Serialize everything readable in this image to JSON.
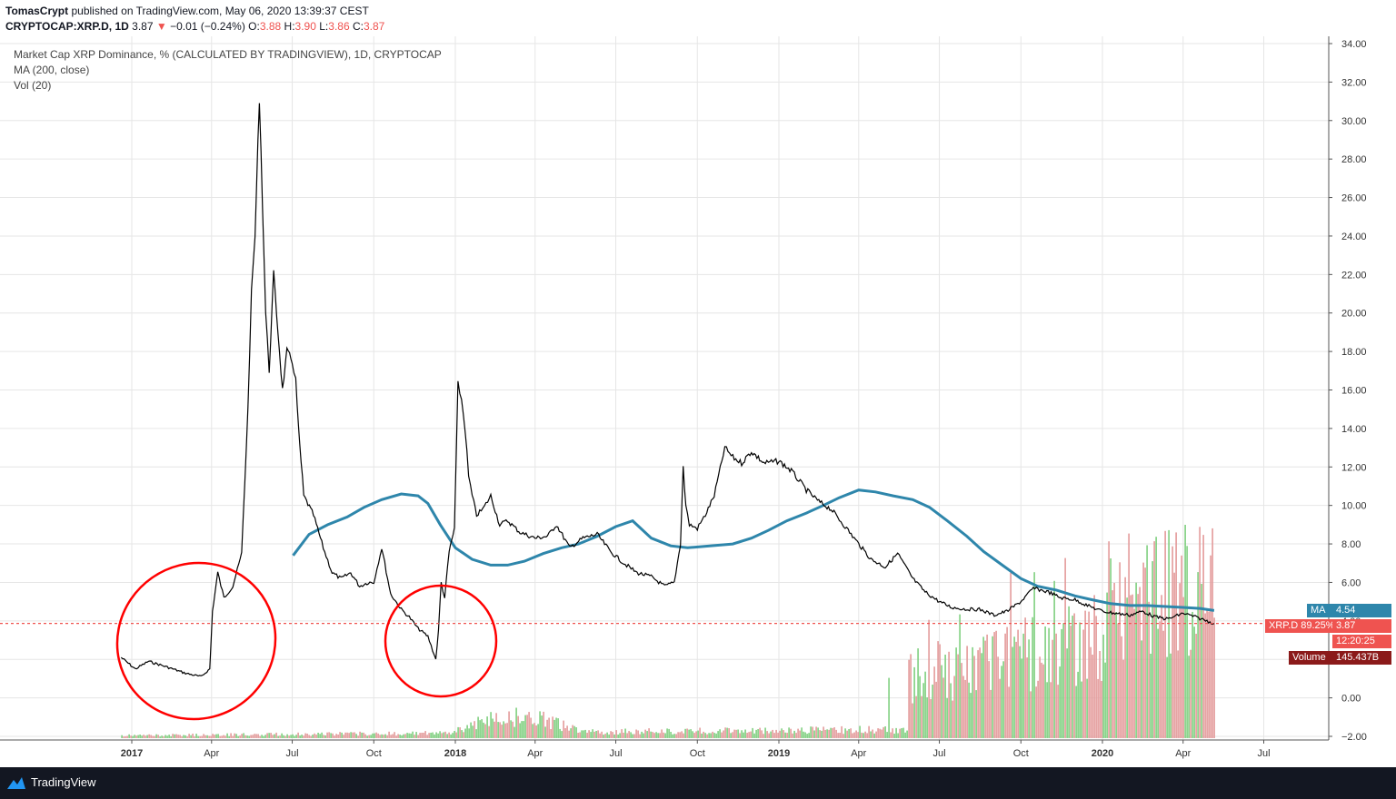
{
  "header": {
    "publisher": "TomasCrypt",
    "published_text": "published on TradingView.com, May 06, 2020 13:39:37 CEST",
    "symbol": "CRYPTOCAP:XRP.D, 1D",
    "last": "3.87",
    "change": "−0.01 (−0.24%)",
    "o_label": "O:",
    "o": "3.88",
    "h_label": "H:",
    "h": "3.90",
    "l_label": "L:",
    "l": "3.86",
    "c_label": "C:",
    "c": "3.87"
  },
  "legend": {
    "title": "Market Cap XRP Dominance, % (CALCULATED BY TRADINGVIEW), 1D, CRYPTOCAP",
    "ma": "MA (200, close)",
    "vol": "Vol (20)"
  },
  "badges": {
    "ma_label": "MA",
    "ma_value": "4.54",
    "price_label": "XRP.D 89.25%",
    "price_value": "3.87",
    "countdown": "12:20:25",
    "volume_label": "Volume",
    "volume_value": "145.437B"
  },
  "footer": {
    "brand": "TradingView"
  },
  "colors": {
    "price_line": "#000000",
    "ma_line": "#2e86ab",
    "volume_up": "#7fcf7f",
    "volume_down": "#e39b9b",
    "price_marker": "#ef5350",
    "annotation_circle": "#ff0000"
  },
  "chart_data": {
    "type": "line",
    "title": "Market Cap XRP Dominance, % (CALCULATED BY TRADINGVIEW), 1D, CRYPTOCAP",
    "x_tick_labels": [
      "2017",
      "Apr",
      "Jul",
      "Oct",
      "2018",
      "Apr",
      "Jul",
      "Oct",
      "2019",
      "Apr",
      "Jul",
      "Oct",
      "2020",
      "Apr",
      "Jul"
    ],
    "y_tick_labels": [
      "34.00",
      "32.00",
      "30.00",
      "28.00",
      "26.00",
      "24.00",
      "22.00",
      "20.00",
      "18.00",
      "16.00",
      "14.00",
      "12.00",
      "10.00",
      "8.00",
      "6.00",
      "4.00",
      "2.00",
      "0.00",
      "-2.00"
    ],
    "ylim": [
      -2,
      34
    ],
    "grid": true,
    "legend_position": "top-left",
    "series": [
      {
        "name": "Market Cap XRP Dominance, % (CALCULATED BY TRADINGVIEW), 1D, CRYPTOCAP",
        "x": [
          "2016-12-20",
          "2017-01-05",
          "2017-01-20",
          "2017-02-10",
          "2017-03-01",
          "2017-03-20",
          "2017-03-30",
          "2017-04-02",
          "2017-04-08",
          "2017-04-15",
          "2017-04-25",
          "2017-05-05",
          "2017-05-12",
          "2017-05-16",
          "2017-05-20",
          "2017-05-25",
          "2017-06-01",
          "2017-06-05",
          "2017-06-10",
          "2017-06-20",
          "2017-06-25",
          "2017-07-01",
          "2017-07-05",
          "2017-07-08",
          "2017-07-14",
          "2017-07-25",
          "2017-08-05",
          "2017-08-15",
          "2017-08-25",
          "2017-09-05",
          "2017-09-15",
          "2017-09-25",
          "2017-10-01",
          "2017-10-10",
          "2017-10-20",
          "2017-11-01",
          "2017-11-10",
          "2017-11-20",
          "2017-12-01",
          "2017-12-10",
          "2017-12-13",
          "2017-12-16",
          "2017-12-20",
          "2017-12-25",
          "2017-12-31",
          "2018-01-04",
          "2018-01-08",
          "2018-01-12",
          "2018-01-16",
          "2018-01-20",
          "2018-01-25",
          "2018-02-01",
          "2018-02-10",
          "2018-02-20",
          "2018-03-01",
          "2018-03-15",
          "2018-04-01",
          "2018-04-15",
          "2018-04-25",
          "2018-05-10",
          "2018-05-25",
          "2018-06-10",
          "2018-06-25",
          "2018-07-10",
          "2018-07-25",
          "2018-08-10",
          "2018-08-25",
          "2018-09-05",
          "2018-09-12",
          "2018-09-15",
          "2018-09-18",
          "2018-09-22",
          "2018-10-01",
          "2018-10-10",
          "2018-10-20",
          "2018-11-01",
          "2018-11-10",
          "2018-11-20",
          "2018-12-01",
          "2018-12-15",
          "2019-01-01",
          "2019-01-15",
          "2019-02-01",
          "2019-02-15",
          "2019-03-01",
          "2019-03-15",
          "2019-04-01",
          "2019-04-15",
          "2019-05-01",
          "2019-05-15",
          "2019-06-01",
          "2019-06-15",
          "2019-07-01",
          "2019-07-15",
          "2019-08-01",
          "2019-08-15",
          "2019-09-01",
          "2019-09-15",
          "2019-10-01",
          "2019-10-15",
          "2019-11-01",
          "2019-11-15",
          "2019-12-01",
          "2019-12-15",
          "2020-01-01",
          "2020-01-15",
          "2020-02-01",
          "2020-02-15",
          "2020-03-01",
          "2020-03-15",
          "2020-04-01",
          "2020-04-15",
          "2020-05-06"
        ],
        "y": [
          2.1,
          1.5,
          1.9,
          1.6,
          1.3,
          1.1,
          1.5,
          4.5,
          6.5,
          5.2,
          5.8,
          7.5,
          15,
          21,
          24,
          31.2,
          20,
          17,
          22,
          16,
          18,
          17.5,
          16.5,
          14,
          10.5,
          9.5,
          7.8,
          6.5,
          6.2,
          6.5,
          5.8,
          6.0,
          6.0,
          7.8,
          5.4,
          4.6,
          4.2,
          3.6,
          3.2,
          2.0,
          3.5,
          6.0,
          5.2,
          7.6,
          8.8,
          16.3,
          15.5,
          14.0,
          11.5,
          10.5,
          9.5,
          9.8,
          10.5,
          9.0,
          9.2,
          8.6,
          8.3,
          8.4,
          9.0,
          7.8,
          8.3,
          8.5,
          7.6,
          7.0,
          6.5,
          6.3,
          5.8,
          6.0,
          8.0,
          12.0,
          10.0,
          9.0,
          8.8,
          9.5,
          10.5,
          13.0,
          12.5,
          12.2,
          12.8,
          12.2,
          12.3,
          11.8,
          10.8,
          10.2,
          9.8,
          9.0,
          8.0,
          7.2,
          6.8,
          7.5,
          6.2,
          5.5,
          5.0,
          4.7,
          4.6,
          4.6,
          4.3,
          4.5,
          5.0,
          5.7,
          5.5,
          5.2,
          5.1,
          4.8,
          4.5,
          4.4,
          4.3,
          4.5,
          4.2,
          4.1,
          4.4,
          4.2,
          3.87
        ]
      },
      {
        "name": "MA (200, close)",
        "x": [
          "2017-07-02",
          "2017-07-20",
          "2017-08-10",
          "2017-09-01",
          "2017-09-20",
          "2017-10-10",
          "2017-11-01",
          "2017-11-20",
          "2017-12-01",
          "2017-12-15",
          "2018-01-01",
          "2018-01-20",
          "2018-02-10",
          "2018-03-01",
          "2018-03-20",
          "2018-04-10",
          "2018-05-01",
          "2018-05-20",
          "2018-06-10",
          "2018-07-01",
          "2018-07-20",
          "2018-08-10",
          "2018-09-01",
          "2018-09-20",
          "2018-10-15",
          "2018-11-10",
          "2018-12-01",
          "2018-12-20",
          "2019-01-10",
          "2019-02-01",
          "2019-02-20",
          "2019-03-10",
          "2019-04-01",
          "2019-04-20",
          "2019-05-10",
          "2019-06-01",
          "2019-06-20",
          "2019-07-10",
          "2019-08-01",
          "2019-08-20",
          "2019-09-10",
          "2019-10-01",
          "2019-10-20",
          "2019-11-10",
          "2019-12-01",
          "2019-12-20",
          "2020-01-10",
          "2020-02-01",
          "2020-02-20",
          "2020-03-10",
          "2020-04-01",
          "2020-04-20",
          "2020-05-06"
        ],
        "y": [
          7.4,
          8.5,
          9.0,
          9.4,
          9.9,
          10.3,
          10.6,
          10.5,
          10.1,
          9.0,
          7.8,
          7.2,
          6.9,
          6.9,
          7.1,
          7.5,
          7.8,
          8.0,
          8.4,
          8.9,
          9.2,
          8.3,
          7.9,
          7.8,
          7.9,
          8.0,
          8.3,
          8.7,
          9.2,
          9.6,
          10.0,
          10.4,
          10.8,
          10.7,
          10.5,
          10.3,
          9.9,
          9.2,
          8.4,
          7.6,
          6.9,
          6.2,
          5.8,
          5.6,
          5.3,
          5.1,
          4.9,
          4.8,
          4.8,
          4.75,
          4.7,
          4.65,
          4.54
        ]
      }
    ]
  }
}
